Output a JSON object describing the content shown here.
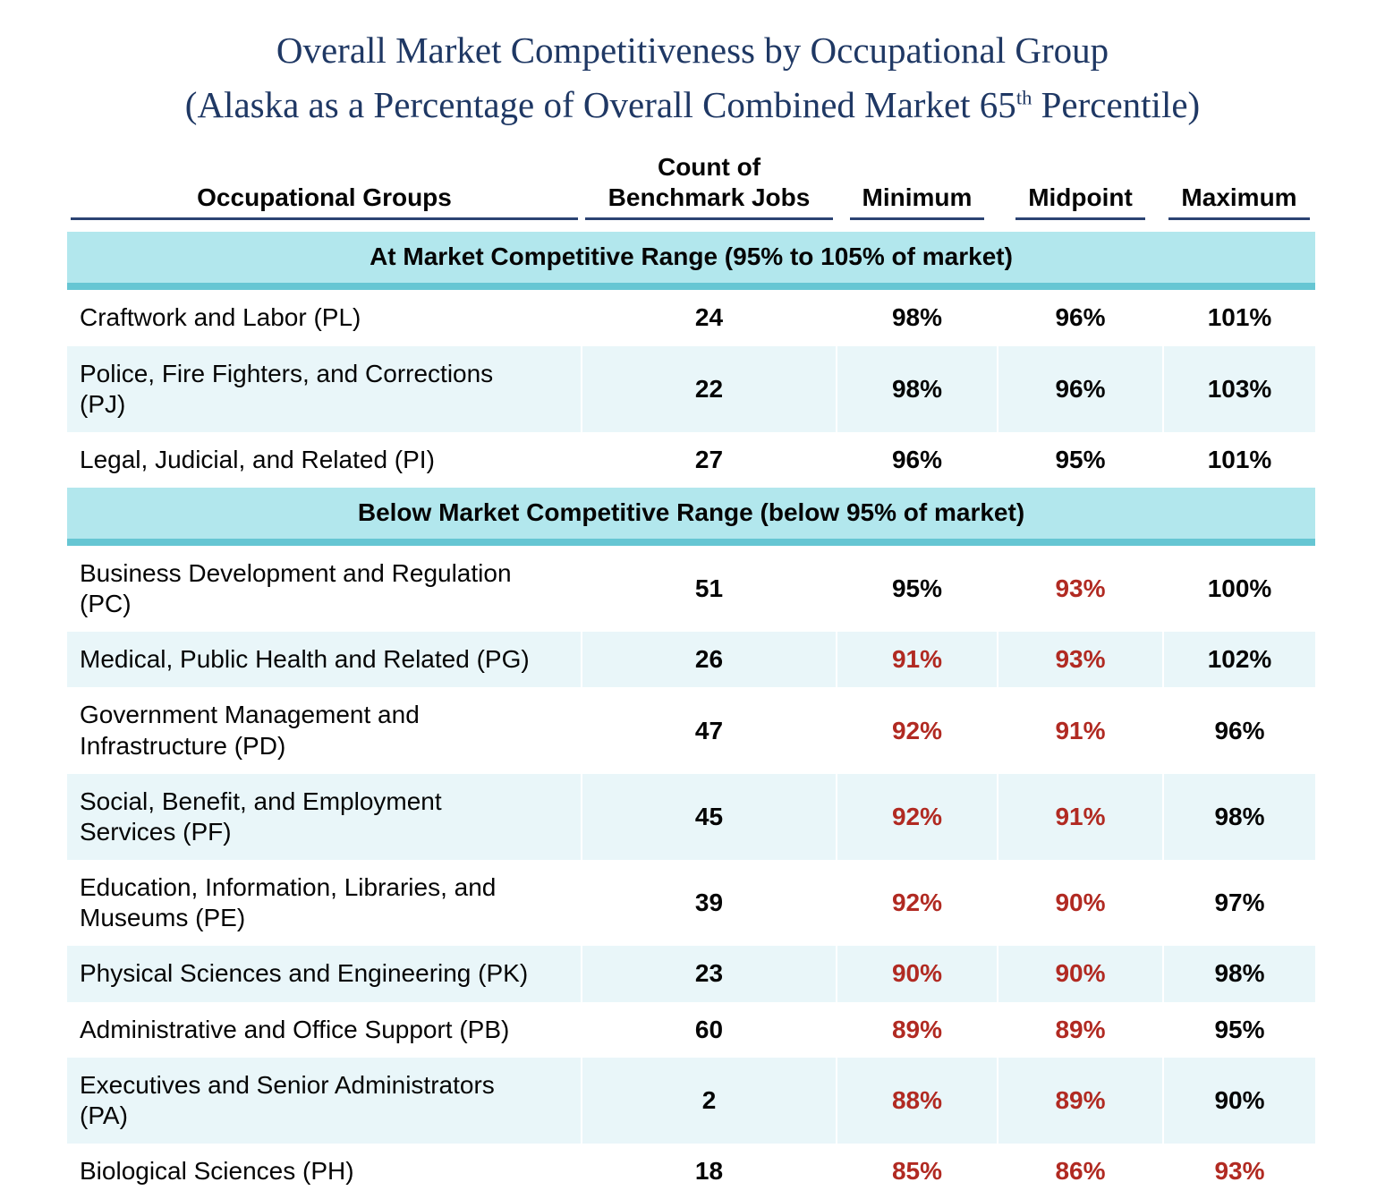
{
  "title": {
    "line1": "Overall Market Competitiveness by Occupational Group",
    "line2_before_sup": "(Alaska as a Percentage of Overall Combined Market 65",
    "line2_sup": "th",
    "line2_after_sup": " Percentile)"
  },
  "table": {
    "columns": {
      "groups": "Occupational Groups",
      "count_line1": "Count of",
      "count_line2": "Benchmark Jobs",
      "minimum": "Minimum",
      "midpoint": "Midpoint",
      "maximum": "Maximum"
    },
    "sections": [
      {
        "header": "At Market Competitive Range (95% to 105% of market)",
        "rows": [
          {
            "group": "Craftwork and Labor (PL)",
            "count": "24",
            "minimum": {
              "value": "98%",
              "below": false
            },
            "midpoint": {
              "value": "96%",
              "below": false
            },
            "maximum": {
              "value": "101%",
              "below": false
            }
          },
          {
            "group": "Police, Fire Fighters, and Corrections\n(PJ)",
            "count": "22",
            "minimum": {
              "value": "98%",
              "below": false
            },
            "midpoint": {
              "value": "96%",
              "below": false
            },
            "maximum": {
              "value": "103%",
              "below": false
            }
          },
          {
            "group": "Legal, Judicial, and Related (PI)",
            "count": "27",
            "minimum": {
              "value": "96%",
              "below": false
            },
            "midpoint": {
              "value": "95%",
              "below": false
            },
            "maximum": {
              "value": "101%",
              "below": false
            }
          }
        ]
      },
      {
        "header": "Below Market Competitive Range (below 95% of market)",
        "rows": [
          {
            "group": "Business Development and Regulation\n(PC)",
            "count": "51",
            "minimum": {
              "value": "95%",
              "below": false
            },
            "midpoint": {
              "value": "93%",
              "below": true
            },
            "maximum": {
              "value": "100%",
              "below": false
            }
          },
          {
            "group": "Medical, Public Health and Related (PG)",
            "count": "26",
            "minimum": {
              "value": "91%",
              "below": true
            },
            "midpoint": {
              "value": "93%",
              "below": true
            },
            "maximum": {
              "value": "102%",
              "below": false
            }
          },
          {
            "group": "Government Management and\nInfrastructure (PD)",
            "count": "47",
            "minimum": {
              "value": "92%",
              "below": true
            },
            "midpoint": {
              "value": "91%",
              "below": true
            },
            "maximum": {
              "value": "96%",
              "below": false
            }
          },
          {
            "group": "Social, Benefit, and Employment\nServices (PF)",
            "count": "45",
            "minimum": {
              "value": "92%",
              "below": true
            },
            "midpoint": {
              "value": "91%",
              "below": true
            },
            "maximum": {
              "value": "98%",
              "below": false
            }
          },
          {
            "group": "Education, Information, Libraries, and\nMuseums (PE)",
            "count": "39",
            "minimum": {
              "value": "92%",
              "below": true
            },
            "midpoint": {
              "value": "90%",
              "below": true
            },
            "maximum": {
              "value": "97%",
              "below": false
            }
          },
          {
            "group": "Physical Sciences and Engineering (PK)",
            "count": "23",
            "minimum": {
              "value": "90%",
              "below": true
            },
            "midpoint": {
              "value": "90%",
              "below": true
            },
            "maximum": {
              "value": "98%",
              "below": false
            }
          },
          {
            "group": "Administrative and Office Support (PB)",
            "count": "60",
            "minimum": {
              "value": "89%",
              "below": true
            },
            "midpoint": {
              "value": "89%",
              "below": true
            },
            "maximum": {
              "value": "95%",
              "below": false
            }
          },
          {
            "group": "Executives and Senior Administrators\n(PA)",
            "count": "2",
            "minimum": {
              "value": "88%",
              "below": true
            },
            "midpoint": {
              "value": "89%",
              "below": true
            },
            "maximum": {
              "value": "90%",
              "below": false
            }
          },
          {
            "group": "Biological Sciences (PH)",
            "count": "18",
            "minimum": {
              "value": "85%",
              "below": true
            },
            "midpoint": {
              "value": "86%",
              "below": true
            },
            "maximum": {
              "value": "93%",
              "below": true
            }
          }
        ]
      }
    ]
  },
  "colors": {
    "title_navy": "#1F3864",
    "header_underline": "#2B4373",
    "section_band_bg": "#B2E7ED",
    "section_band_border": "#66C6D3",
    "zebra_row_bg": "#E9F6F9",
    "below_market_red": "#B12A22",
    "text_black": "#050505"
  }
}
